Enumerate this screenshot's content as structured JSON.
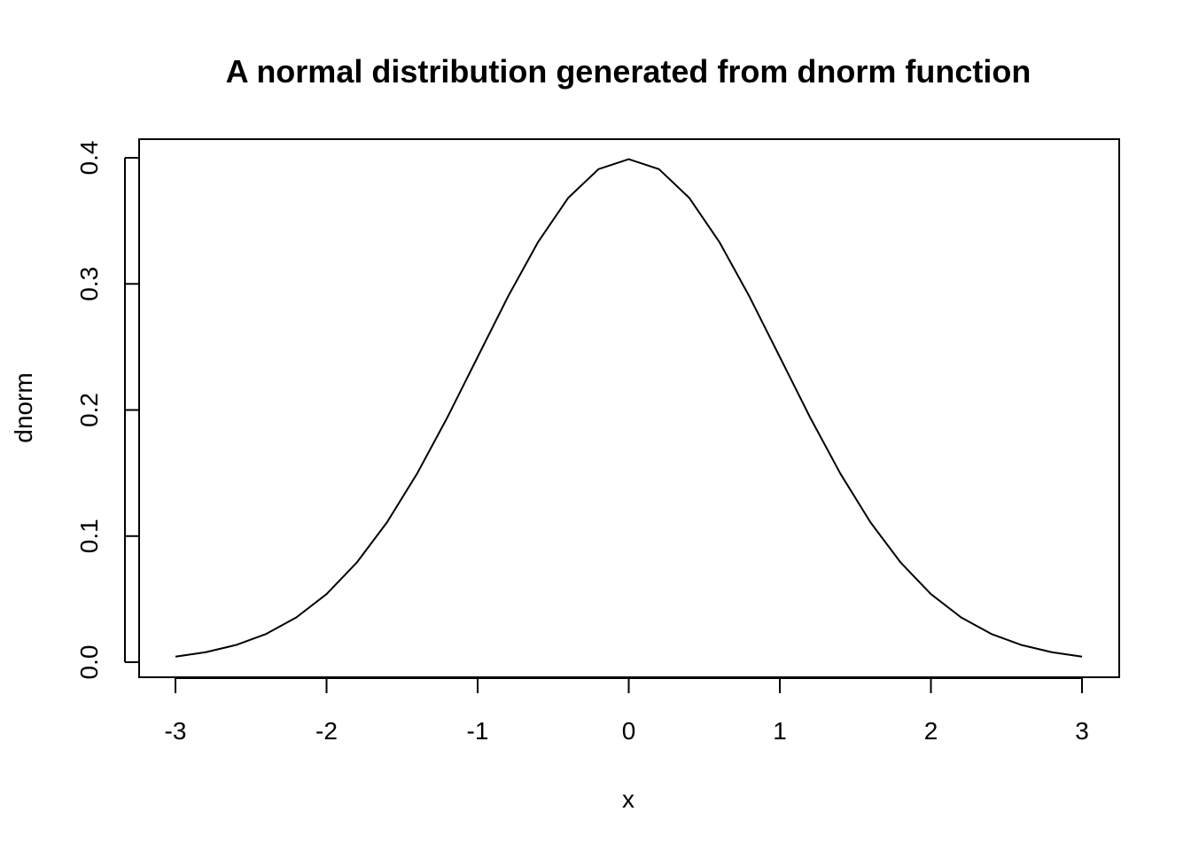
{
  "chart_data": {
    "type": "line",
    "title": "A normal distribution generated from dnorm function",
    "xlabel": "x",
    "ylabel": "dnorm",
    "xlim": [
      -3,
      3
    ],
    "ylim": [
      0,
      0.4
    ],
    "x_ticks": [
      "-3",
      "-2",
      "-1",
      "0",
      "1",
      "2",
      "3"
    ],
    "y_ticks": [
      "0.0",
      "0.1",
      "0.2",
      "0.3",
      "0.4"
    ],
    "grid": false,
    "legend": "none",
    "series": [
      {
        "x": [
          -3.0,
          -2.8,
          -2.6,
          -2.4,
          -2.2,
          -2.0,
          -1.8,
          -1.6,
          -1.4,
          -1.2,
          -1.0,
          -0.8,
          -0.6,
          -0.4,
          -0.2,
          0.0,
          0.2,
          0.4,
          0.6,
          0.8,
          1.0,
          1.2,
          1.4,
          1.6,
          1.8,
          2.0,
          2.2,
          2.4,
          2.6,
          2.8,
          3.0
        ],
        "y": [
          0.0044,
          0.0079,
          0.0136,
          0.0224,
          0.0355,
          0.054,
          0.079,
          0.1109,
          0.1497,
          0.1942,
          0.242,
          0.2897,
          0.3332,
          0.3683,
          0.391,
          0.3989,
          0.391,
          0.3683,
          0.3332,
          0.2897,
          0.242,
          0.1942,
          0.1497,
          0.1109,
          0.079,
          0.054,
          0.0355,
          0.0224,
          0.0136,
          0.0079,
          0.0044
        ]
      }
    ]
  }
}
